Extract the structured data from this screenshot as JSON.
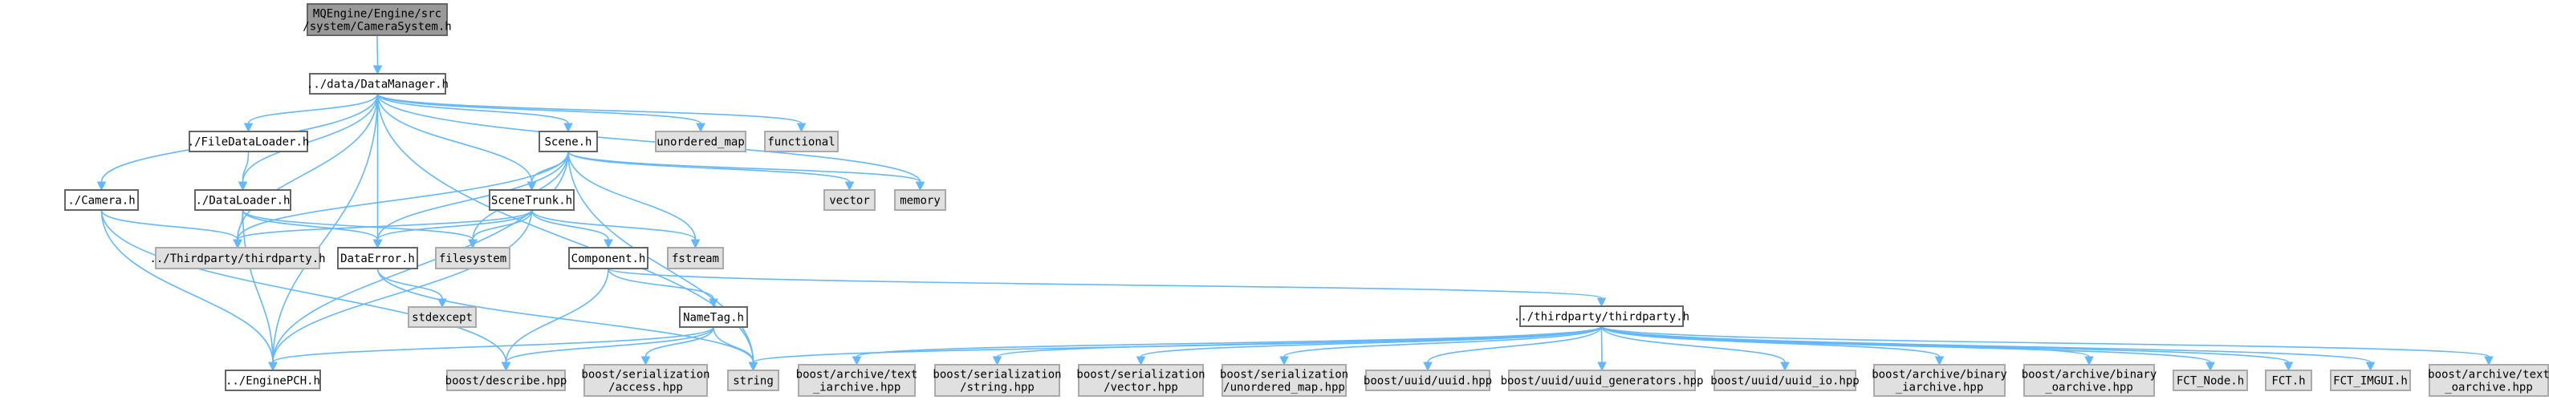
{
  "colors": {
    "root_fill": "#999999",
    "documented_fill": "#ffffff",
    "external_fill": "#e0e0e0",
    "edge": "#63b8ff"
  },
  "nodes": {
    "camerasystem": {
      "lines": [
        "MQEngine/Engine/src",
        "/system/CameraSystem.h"
      ],
      "kind": "root"
    },
    "datamanager": {
      "lines": [
        "../data/DataManager.h"
      ],
      "kind": "documented"
    },
    "filedataloader": {
      "lines": [
        "./FileDataLoader.h"
      ],
      "kind": "documented"
    },
    "scene": {
      "lines": [
        "Scene.h"
      ],
      "kind": "documented"
    },
    "unordered_map": {
      "lines": [
        "unordered_map"
      ],
      "kind": "external"
    },
    "functional": {
      "lines": [
        "functional"
      ],
      "kind": "external"
    },
    "vector": {
      "lines": [
        "vector"
      ],
      "kind": "external"
    },
    "memory": {
      "lines": [
        "memory"
      ],
      "kind": "external"
    },
    "camera": {
      "lines": [
        "./Camera.h"
      ],
      "kind": "documented"
    },
    "dataloader": {
      "lines": [
        "./DataLoader.h"
      ],
      "kind": "documented"
    },
    "scenetrunk": {
      "lines": [
        "SceneTrunk.h"
      ],
      "kind": "documented"
    },
    "thirdparty_up": {
      "lines": [
        "../Thirdparty/thirdparty.h"
      ],
      "kind": "external"
    },
    "dataerror": {
      "lines": [
        "DataError.h"
      ],
      "kind": "documented"
    },
    "filesystem": {
      "lines": [
        "filesystem"
      ],
      "kind": "external"
    },
    "component": {
      "lines": [
        "Component.h"
      ],
      "kind": "documented"
    },
    "fstream": {
      "lines": [
        "fstream"
      ],
      "kind": "external"
    },
    "stdexcept": {
      "lines": [
        "stdexcept"
      ],
      "kind": "external"
    },
    "nametag": {
      "lines": [
        "NameTag.h"
      ],
      "kind": "documented"
    },
    "thirdparty": {
      "lines": [
        "../thirdparty/thirdparty.h"
      ],
      "kind": "documented"
    },
    "enginepch": {
      "lines": [
        "../EnginePCH.h"
      ],
      "kind": "documented"
    },
    "describe": {
      "lines": [
        "boost/describe.hpp"
      ],
      "kind": "external"
    },
    "access": {
      "lines": [
        "boost/serialization",
        "/access.hpp"
      ],
      "kind": "external"
    },
    "string": {
      "lines": [
        "string"
      ],
      "kind": "external"
    },
    "text_iarchive": {
      "lines": [
        "boost/archive/text",
        "_iarchive.hpp"
      ],
      "kind": "external"
    },
    "ser_string": {
      "lines": [
        "boost/serialization",
        "/string.hpp"
      ],
      "kind": "external"
    },
    "ser_vector": {
      "lines": [
        "boost/serialization",
        "/vector.hpp"
      ],
      "kind": "external"
    },
    "ser_unordered_map": {
      "lines": [
        "boost/serialization",
        "/unordered_map.hpp"
      ],
      "kind": "external"
    },
    "uuid": {
      "lines": [
        "boost/uuid/uuid.hpp"
      ],
      "kind": "external"
    },
    "uuid_generators": {
      "lines": [
        "boost/uuid/uuid_generators.hpp"
      ],
      "kind": "external"
    },
    "uuid_io": {
      "lines": [
        "boost/uuid/uuid_io.hpp"
      ],
      "kind": "external"
    },
    "binary_iarchive": {
      "lines": [
        "boost/archive/binary",
        "_iarchive.hpp"
      ],
      "kind": "external"
    },
    "binary_oarchive": {
      "lines": [
        "boost/archive/binary",
        "_oarchive.hpp"
      ],
      "kind": "external"
    },
    "fct_node": {
      "lines": [
        "FCT_Node.h"
      ],
      "kind": "external"
    },
    "fct": {
      "lines": [
        "FCT.h"
      ],
      "kind": "external"
    },
    "fct_imgui": {
      "lines": [
        "FCT_IMGUI.h"
      ],
      "kind": "external"
    },
    "text_oarchive": {
      "lines": [
        "boost/archive/text",
        "_oarchive.hpp"
      ],
      "kind": "external"
    }
  },
  "edges": [
    [
      "camerasystem",
      "datamanager"
    ],
    [
      "datamanager",
      "camera"
    ],
    [
      "datamanager",
      "dataloader"
    ],
    [
      "datamanager",
      "filedataloader"
    ],
    [
      "datamanager",
      "thirdparty_up"
    ],
    [
      "datamanager",
      "dataerror"
    ],
    [
      "datamanager",
      "scenetrunk"
    ],
    [
      "datamanager",
      "scene"
    ],
    [
      "datamanager",
      "unordered_map"
    ],
    [
      "datamanager",
      "functional"
    ],
    [
      "datamanager",
      "memory"
    ],
    [
      "datamanager",
      "string"
    ],
    [
      "datamanager",
      "enginepch"
    ],
    [
      "filedataloader",
      "dataloader"
    ],
    [
      "scene",
      "vector"
    ],
    [
      "scene",
      "memory"
    ],
    [
      "scene",
      "scenetrunk"
    ],
    [
      "scene",
      "dataerror"
    ],
    [
      "scene",
      "thirdparty_up"
    ],
    [
      "scene",
      "filesystem"
    ],
    [
      "scene",
      "fstream"
    ],
    [
      "scene",
      "enginepch"
    ],
    [
      "scene",
      "string"
    ],
    [
      "camera",
      "thirdparty_up"
    ],
    [
      "camera",
      "enginepch"
    ],
    [
      "camera",
      "describe"
    ],
    [
      "dataloader",
      "thirdparty_up"
    ],
    [
      "dataloader",
      "dataerror"
    ],
    [
      "dataloader",
      "filesystem"
    ],
    [
      "dataloader",
      "enginepch"
    ],
    [
      "scenetrunk",
      "thirdparty_up"
    ],
    [
      "scenetrunk",
      "dataerror"
    ],
    [
      "scenetrunk",
      "filesystem"
    ],
    [
      "scenetrunk",
      "component"
    ],
    [
      "scenetrunk",
      "fstream"
    ],
    [
      "scenetrunk",
      "enginepch"
    ],
    [
      "dataerror",
      "stdexcept"
    ],
    [
      "dataerror",
      "string"
    ],
    [
      "component",
      "nametag"
    ],
    [
      "component",
      "describe"
    ],
    [
      "component",
      "thirdparty"
    ],
    [
      "nametag",
      "enginepch"
    ],
    [
      "nametag",
      "describe"
    ],
    [
      "nametag",
      "access"
    ],
    [
      "nametag",
      "string"
    ],
    [
      "thirdparty",
      "string"
    ],
    [
      "thirdparty",
      "text_iarchive"
    ],
    [
      "thirdparty",
      "ser_string"
    ],
    [
      "thirdparty",
      "ser_vector"
    ],
    [
      "thirdparty",
      "ser_unordered_map"
    ],
    [
      "thirdparty",
      "uuid"
    ],
    [
      "thirdparty",
      "uuid_generators"
    ],
    [
      "thirdparty",
      "uuid_io"
    ],
    [
      "thirdparty",
      "binary_iarchive"
    ],
    [
      "thirdparty",
      "binary_oarchive"
    ],
    [
      "thirdparty",
      "fct_node"
    ],
    [
      "thirdparty",
      "fct"
    ],
    [
      "thirdparty",
      "fct_imgui"
    ],
    [
      "thirdparty",
      "text_oarchive"
    ]
  ]
}
